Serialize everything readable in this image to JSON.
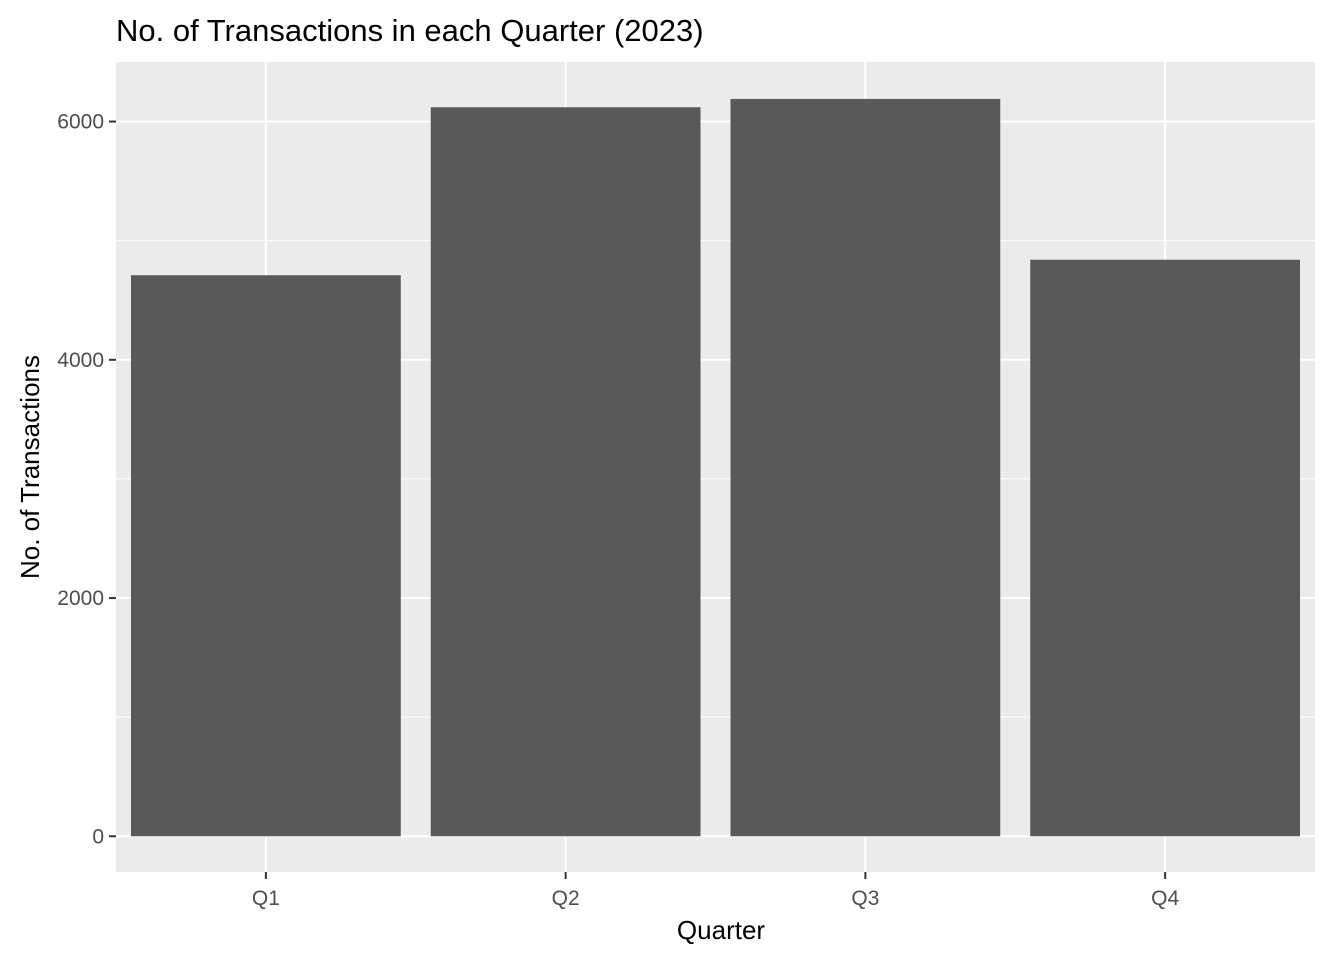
{
  "chart_data": {
    "type": "bar",
    "title": "No. of Transactions in each Quarter (2023)",
    "xlabel": "Quarter",
    "ylabel": "No. of Transactions",
    "categories": [
      "Q1",
      "Q2",
      "Q3",
      "Q4"
    ],
    "values": [
      4710,
      6120,
      6190,
      4840
    ],
    "ylim": [
      -300,
      6500
    ],
    "yticks": [
      0,
      2000,
      4000,
      6000
    ],
    "grid": true,
    "colors": {
      "bar": "#595959",
      "panel": "#ebebeb",
      "grid": "#ffffff",
      "tick": "#333333"
    }
  }
}
